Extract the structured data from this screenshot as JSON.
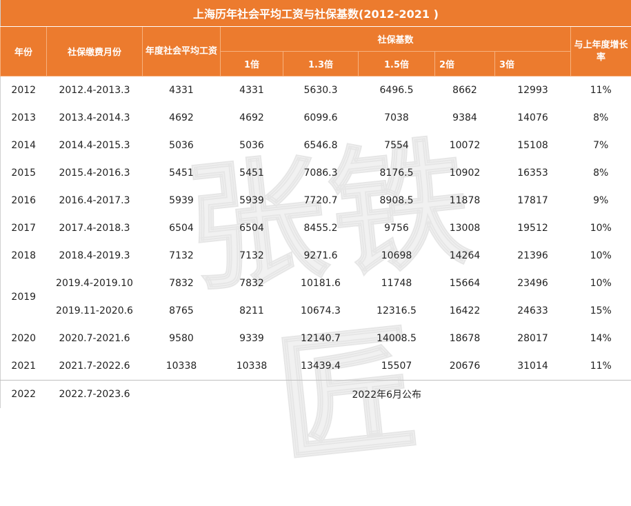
{
  "title": "上海历年社会平均工资与社保基数(2012-2021 )",
  "watermark": "张铁匠",
  "headers": {
    "year": "年份",
    "months": "社保缴费月份",
    "avg_wage": "年度社会平均工资",
    "base_group": "社保基数",
    "m1": "1倍",
    "m13": "1.3倍",
    "m15": "1.5倍",
    "m2": "2倍",
    "m3": "3倍",
    "growth": "与上年度增长率"
  },
  "rows": [
    {
      "year": "2012",
      "months": "2012.4-2013.3",
      "avg": "4331",
      "b1": "4331",
      "b13": "5630.3",
      "b15": "6496.5",
      "b2": "8662",
      "b3": "12993",
      "growth": "11%"
    },
    {
      "year": "2013",
      "months": "2013.4-2014.3",
      "avg": "4692",
      "b1": "4692",
      "b13": "6099.6",
      "b15": "7038",
      "b2": "9384",
      "b3": "14076",
      "growth": "8%"
    },
    {
      "year": "2014",
      "months": "2014.4-2015.3",
      "avg": "5036",
      "b1": "5036",
      "b13": "6546.8",
      "b15": "7554",
      "b2": "10072",
      "b3": "15108",
      "growth": "7%"
    },
    {
      "year": "2015",
      "months": "2015.4-2016.3",
      "avg": "5451",
      "b1": "5451",
      "b13": "7086.3",
      "b15": "8176.5",
      "b2": "10902",
      "b3": "16353",
      "growth": "8%"
    },
    {
      "year": "2016",
      "months": "2016.4-2017.3",
      "avg": "5939",
      "b1": "5939",
      "b13": "7720.7",
      "b15": "8908.5",
      "b2": "11878",
      "b3": "17817",
      "growth": "9%"
    },
    {
      "year": "2017",
      "months": "2017.4-2018.3",
      "avg": "6504",
      "b1": "6504",
      "b13": "8455.2",
      "b15": "9756",
      "b2": "13008",
      "b3": "19512",
      "growth": "10%"
    },
    {
      "year": "2018",
      "months": "2018.4-2019.3",
      "avg": "7132",
      "b1": "7132",
      "b13": "9271.6",
      "b15": "10698",
      "b2": "14264",
      "b3": "21396",
      "growth": "10%"
    },
    {
      "year": "2019",
      "months": "2019.4-2019.10",
      "avg": "7832",
      "b1": "7832",
      "b13": "10181.6",
      "b15": "11748",
      "b2": "15664",
      "b3": "23496",
      "growth": "10%"
    },
    {
      "year": "",
      "months": "2019.11-2020.6",
      "avg": "8765",
      "b1": "8211",
      "b13": "10674.3",
      "b15": "12316.5",
      "b2": "16422",
      "b3": "24633",
      "growth": "15%"
    },
    {
      "year": "2020",
      "months": "2020.7-2021.6",
      "avg": "9580",
      "b1": "9339",
      "b13": "12140.7",
      "b15": "14008.5",
      "b2": "18678",
      "b3": "28017",
      "growth": "14%"
    },
    {
      "year": "2021",
      "months": "2021.7-2022.6",
      "avg": "10338",
      "b1": "10338",
      "b13": "13439.4",
      "b15": "15507",
      "b2": "20676",
      "b3": "31014",
      "growth": "11%"
    }
  ],
  "footer": {
    "year": "2022",
    "months": "2022.7-2023.6",
    "note": "2022年6月公布"
  },
  "colors": {
    "header_bg": "#ec7b2e",
    "header_text": "#ffffff"
  }
}
